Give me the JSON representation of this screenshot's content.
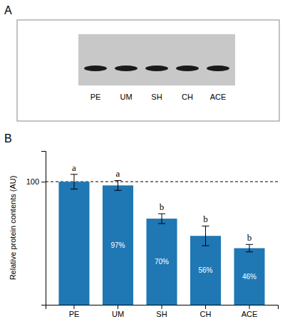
{
  "chart_data": [
    {
      "type": "blot",
      "title": "A",
      "categories": [
        "PE",
        "UM",
        "SH",
        "CH",
        "ACE"
      ]
    },
    {
      "type": "bar",
      "title": "B",
      "categories": [
        "PE",
        "UM",
        "SH",
        "CH",
        "ACE"
      ],
      "values": [
        100,
        97,
        70,
        56,
        46
      ],
      "errors": [
        6,
        4,
        4,
        8,
        3
      ],
      "data_labels": true,
      "value_labels": [
        null,
        "97%",
        "70%",
        "56%",
        "46%"
      ],
      "significance_labels": [
        "a",
        "a",
        "b",
        "b",
        "b"
      ],
      "ylabel": "Relative protein contents (AU)",
      "reference_line": 100,
      "ylim": [
        0,
        125
      ],
      "yticks": [
        100
      ],
      "grid": false
    }
  ]
}
